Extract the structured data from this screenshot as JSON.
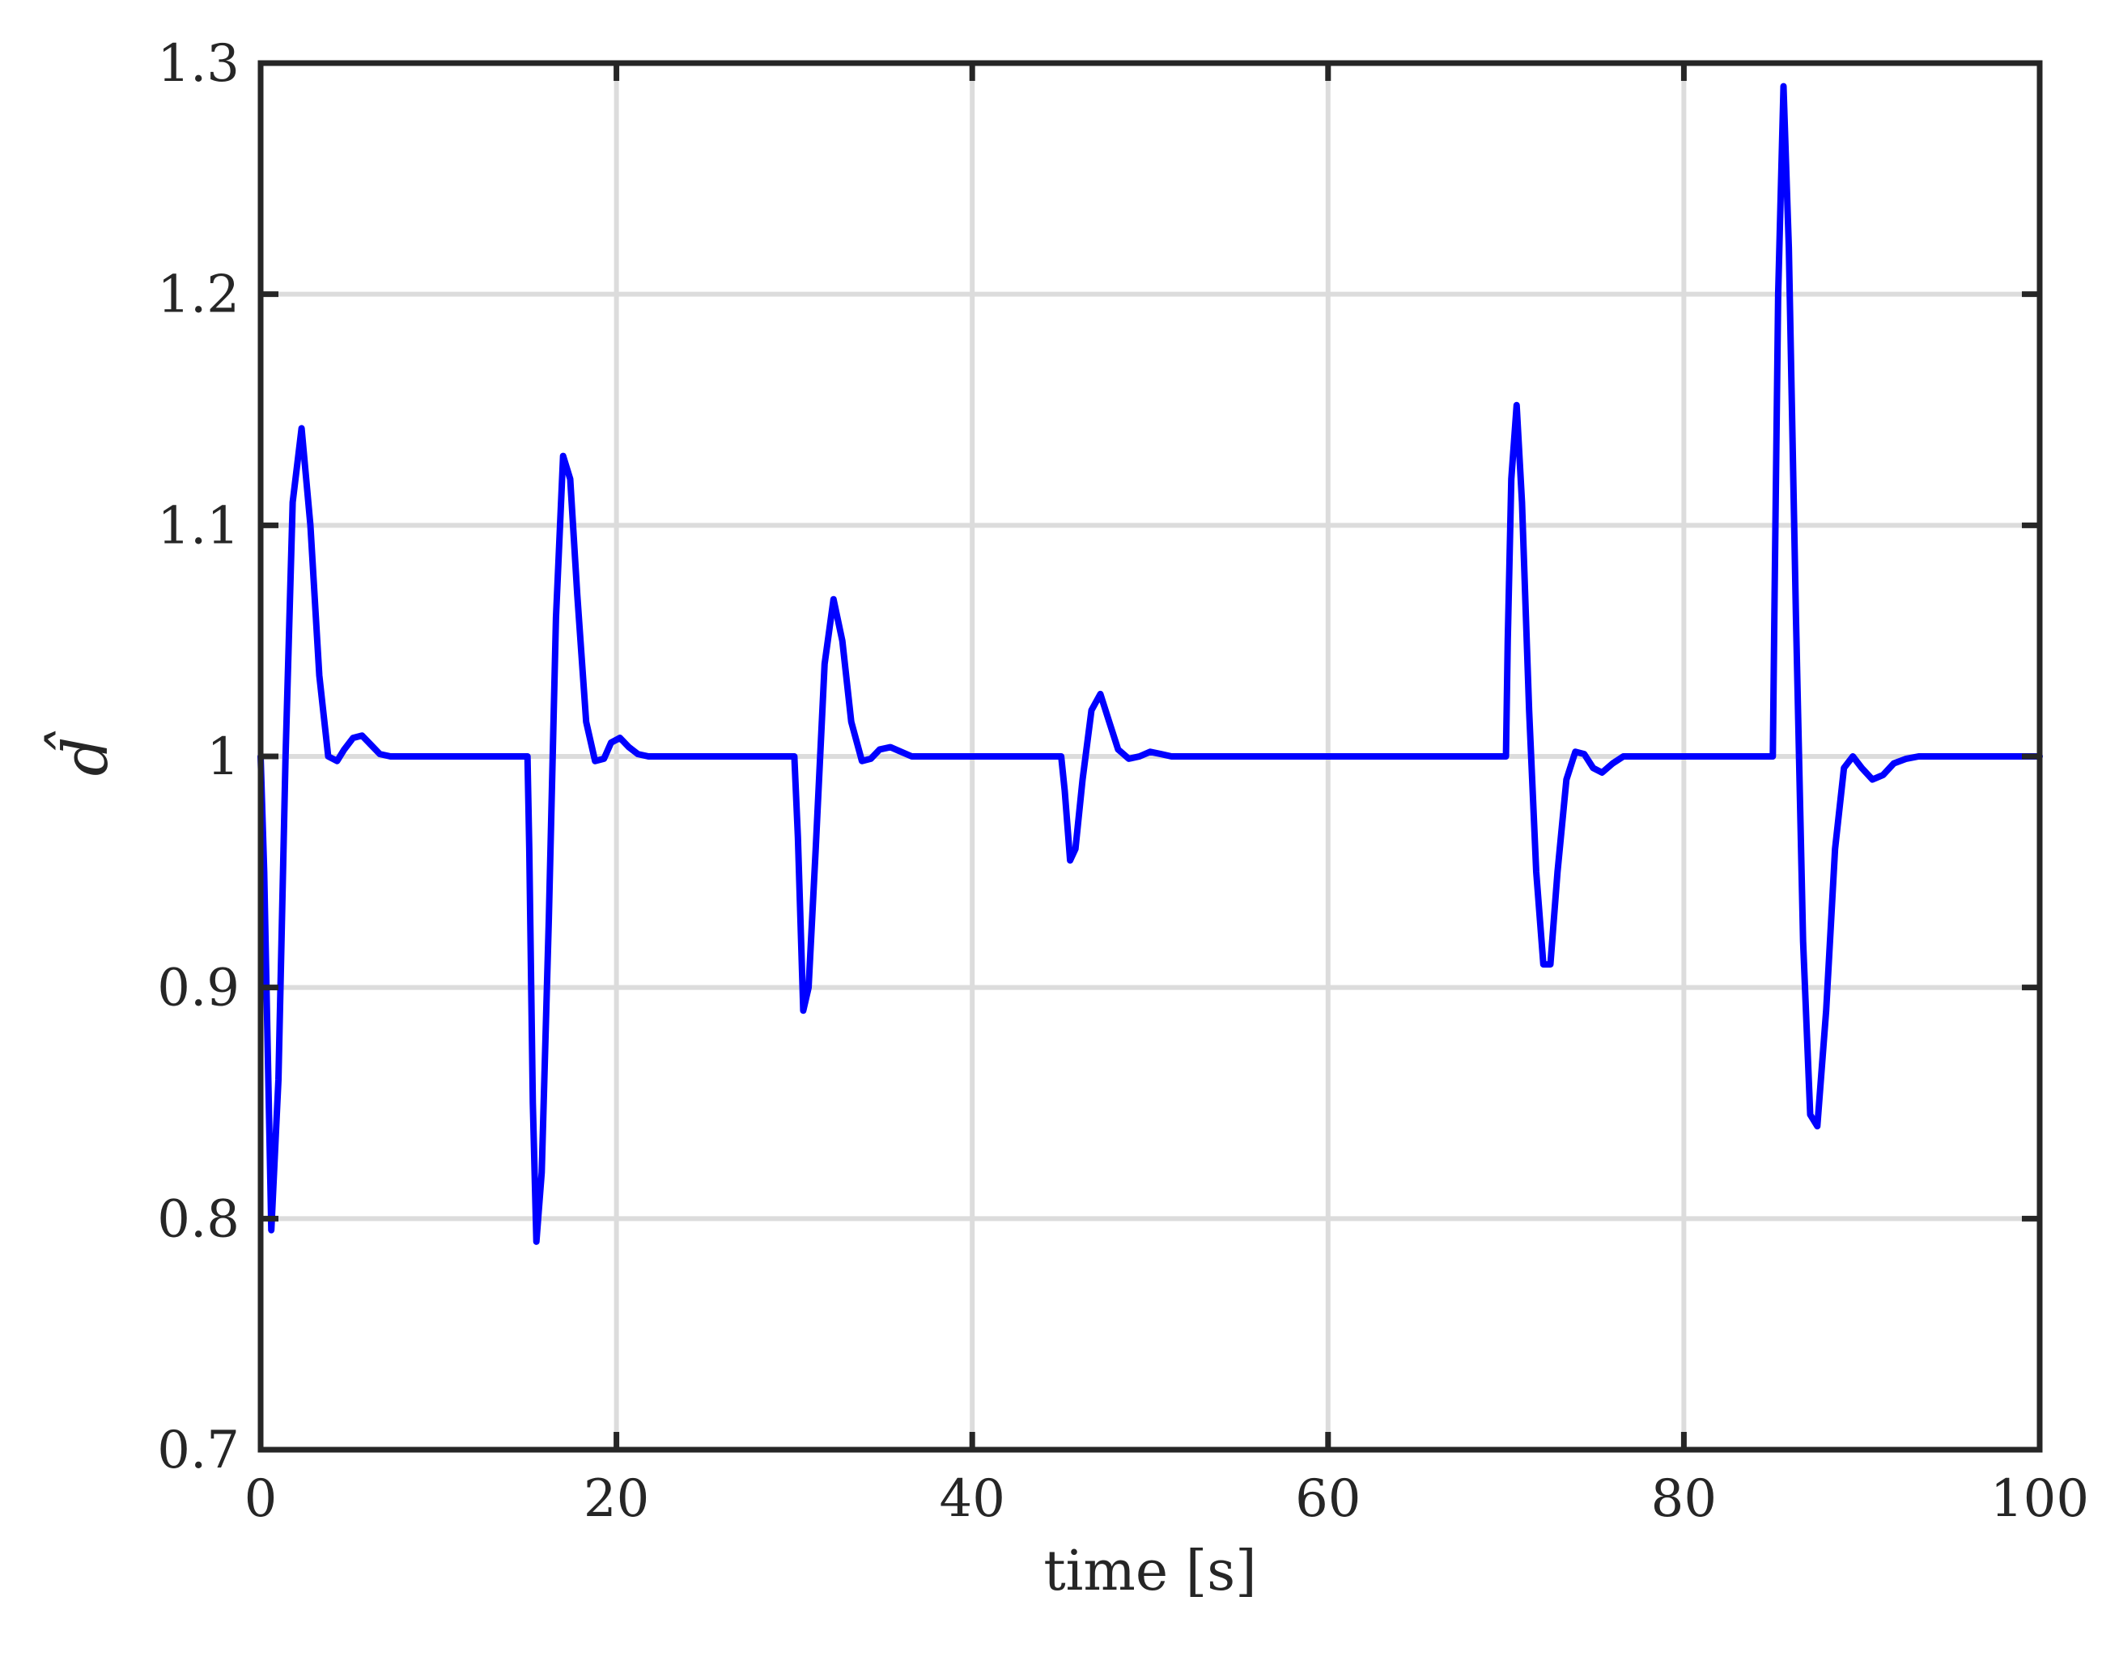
{
  "chart_data": {
    "type": "line",
    "xlabel": "time [s]",
    "ylabel": "d̂",
    "xlim": [
      0,
      100
    ],
    "ylim": [
      0.7,
      1.3
    ],
    "xticks": [
      0,
      20,
      40,
      60,
      80,
      100
    ],
    "xtick_labels": [
      "0",
      "20",
      "40",
      "60",
      "80",
      "100"
    ],
    "yticks": [
      0.7,
      0.8,
      0.9,
      1.0,
      1.1,
      1.2,
      1.3
    ],
    "ytick_labels": [
      "0.7",
      "0.8",
      "0.9",
      "1",
      "1.1",
      "1.2",
      "1.3"
    ],
    "grid": true,
    "legend": "none",
    "colors": {
      "series": "#0000ff",
      "grid": "#dcdcdc",
      "axes": "#262626"
    },
    "series": [
      {
        "color": "#0000ff",
        "x": [
          0,
          0.2,
          0.6,
          1.0,
          1.4,
          1.8,
          2.3,
          2.8,
          3.3,
          3.8,
          4.3,
          4.7,
          5.2,
          5.7,
          6.2,
          6.7,
          7.3,
          8.2,
          10,
          12,
          15,
          15.1,
          15.3,
          15.5,
          15.8,
          16.2,
          16.6,
          17.0,
          17.4,
          17.8,
          18.3,
          18.8,
          19.3,
          19.7,
          20.2,
          20.7,
          21.2,
          21.8,
          22.5,
          23.5,
          26,
          30,
          30.2,
          30.5,
          30.8,
          31.2,
          31.7,
          32.2,
          32.7,
          33.2,
          33.8,
          34.3,
          34.8,
          35.4,
          36.0,
          36.6,
          37.3,
          38.5,
          41,
          45,
          45.2,
          45.5,
          45.8,
          46.2,
          46.7,
          47.2,
          47.7,
          48.2,
          48.8,
          49.4,
          50.0,
          50.6,
          51.2,
          52.0,
          53.0,
          55,
          60,
          65,
          70,
          70.1,
          70.3,
          70.6,
          70.9,
          71.3,
          71.7,
          72.1,
          72.5,
          72.9,
          73.4,
          73.9,
          74.4,
          74.9,
          75.4,
          76.0,
          76.6,
          77.3,
          78.0,
          79.0,
          81,
          85,
          85.1,
          85.3,
          85.6,
          85.9,
          86.3,
          86.7,
          87.1,
          87.5,
          88.0,
          88.5,
          89.0,
          89.5,
          90.0,
          90.6,
          91.2,
          91.8,
          92.5,
          93.2,
          94.5,
          96,
          100
        ],
        "y": [
          1.0,
          0.95,
          0.795,
          0.86,
          1.0,
          1.11,
          1.142,
          1.1,
          1.035,
          1.0,
          0.998,
          1.003,
          1.008,
          1.009,
          1.005,
          1.001,
          1.0,
          1.0,
          1.0,
          1.0,
          1.0,
          0.96,
          0.85,
          0.79,
          0.82,
          0.93,
          1.06,
          1.13,
          1.12,
          1.07,
          1.015,
          0.998,
          0.999,
          1.006,
          1.008,
          1.004,
          1.001,
          1.0,
          1.0,
          1.0,
          1.0,
          1.0,
          0.965,
          0.89,
          0.9,
          0.96,
          1.04,
          1.068,
          1.05,
          1.015,
          0.998,
          0.999,
          1.003,
          1.004,
          1.002,
          1.0,
          1.0,
          1.0,
          1.0,
          1.0,
          0.985,
          0.955,
          0.96,
          0.99,
          1.02,
          1.027,
          1.015,
          1.003,
          0.999,
          1.0,
          1.002,
          1.001,
          1.0,
          1.0,
          1.0,
          1.0,
          1.0,
          1.0,
          1.0,
          1.05,
          1.12,
          1.152,
          1.11,
          1.02,
          0.95,
          0.91,
          0.91,
          0.95,
          0.99,
          1.002,
          1.001,
          0.995,
          0.993,
          0.997,
          1.0,
          1.0,
          1.0,
          1.0,
          1.0,
          1.0,
          1.07,
          1.2,
          1.29,
          1.22,
          1.06,
          0.92,
          0.845,
          0.84,
          0.89,
          0.96,
          0.995,
          1.0,
          0.995,
          0.99,
          0.992,
          0.997,
          0.999,
          1.0,
          1.0,
          1.0,
          1.0
        ]
      }
    ]
  }
}
